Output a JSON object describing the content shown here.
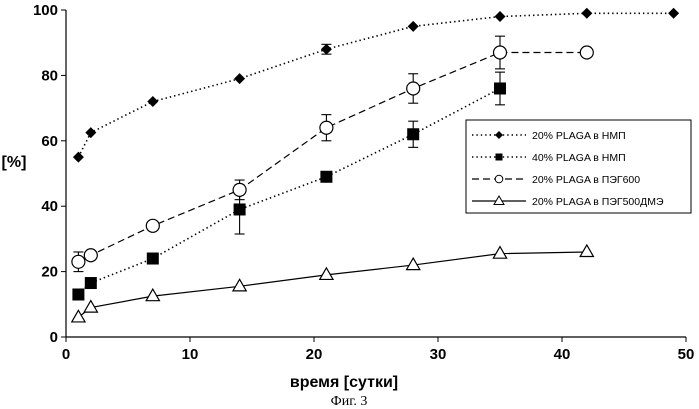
{
  "chart_data": {
    "type": "line",
    "xlabel": "время [сутки]",
    "ylabel": "[%]",
    "caption": "Фиг. 3",
    "xlim": [
      0,
      50
    ],
    "ylim": [
      0,
      100
    ],
    "xticks": [
      0,
      10,
      20,
      30,
      40,
      50
    ],
    "yticks": [
      0,
      20,
      40,
      60,
      80,
      100
    ],
    "grid": false,
    "legend_position": "right",
    "series": [
      {
        "name": "20% PLAGA в НМП",
        "marker": "diamond-filled",
        "line": "dotted",
        "x": [
          1,
          2,
          7,
          14,
          21,
          28,
          35,
          42,
          49
        ],
        "y": [
          55,
          62.5,
          72,
          79,
          88,
          95,
          98,
          99,
          99
        ],
        "err": [
          0,
          0,
          0,
          0,
          1.5,
          0,
          0,
          0,
          0
        ]
      },
      {
        "name": "40% PLAGA в НМП",
        "marker": "square-filled",
        "line": "dotted",
        "x": [
          1,
          2,
          7,
          14,
          21,
          28,
          35
        ],
        "y": [
          13,
          16.5,
          24,
          39,
          49,
          62,
          76
        ],
        "err": [
          1.5,
          0,
          0,
          7.5,
          0,
          4,
          5
        ]
      },
      {
        "name": "20% PLAGA в ПЭГ600",
        "marker": "circle-open",
        "line": "dashed",
        "x": [
          1,
          2,
          7,
          14,
          21,
          28,
          35,
          42
        ],
        "y": [
          23,
          25,
          34,
          45,
          64,
          76,
          87,
          87
        ],
        "err": [
          3,
          0,
          0,
          3,
          4,
          4.5,
          5,
          0
        ]
      },
      {
        "name": "20% PLAGA в ПЭГ500ДМЭ",
        "marker": "triangle-open",
        "line": "solid",
        "x": [
          1,
          2,
          7,
          14,
          21,
          28,
          35,
          42
        ],
        "y": [
          6,
          9,
          12.5,
          15.5,
          19,
          22,
          25.5,
          26
        ],
        "err": [
          0,
          0,
          0,
          0,
          0,
          0,
          0,
          0
        ]
      }
    ]
  }
}
